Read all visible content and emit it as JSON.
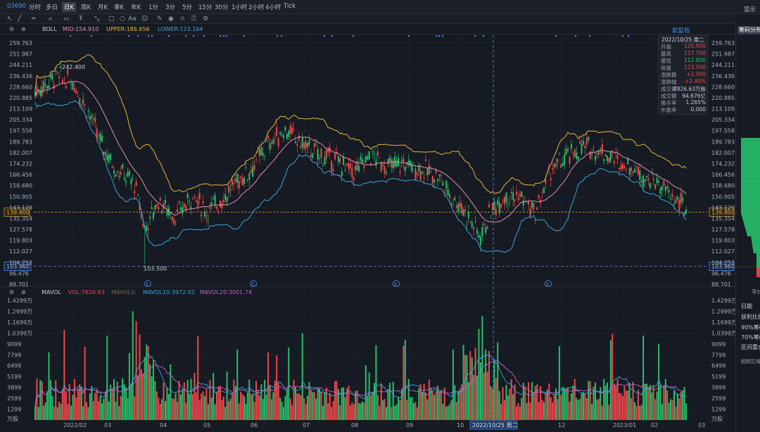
{
  "ticker": "03690",
  "timeframes": [
    "分时",
    "多日",
    "日K",
    "周K",
    "月K",
    "季K",
    "年K",
    "1分",
    "3分",
    "5分",
    "15分",
    "30分",
    "1小时",
    "2小时",
    "4小时",
    "Tick"
  ],
  "active_timeframe": "日K",
  "display_label": "显示",
  "adjust_label": "前复权",
  "chip_tab": "筹码分布",
  "boll": {
    "name": "BOLL",
    "mid": "MID:154.910",
    "upper": "UPPER:186.656",
    "lower": "LOWER:123.164"
  },
  "mavol": {
    "name": "MAVOL",
    "vol": "VOL:7826.63",
    "ma5": "MAVOL5:",
    "ma10": "MAVOL10:3972.02",
    "ma20": "MAVOL20:3001.74"
  },
  "price_axis": [
    "259.763",
    "251.987",
    "244.211",
    "236.436",
    "228.660",
    "220.885",
    "213.109",
    "205.334",
    "197.558",
    "189.783",
    "182.007",
    "174.232",
    "166.456",
    "158.680",
    "150.905",
    "143.129",
    "135.354",
    "127.578",
    "119.803",
    "112.027",
    "104.252",
    "96.476",
    "88.701"
  ],
  "vol_axis": [
    "1.4299万",
    "1.2999万",
    "1.1699万",
    "1.0399万",
    "9099",
    "7799",
    "6499",
    "5199",
    "3899",
    "2599",
    "1299",
    "万股"
  ],
  "date_axis": [
    "2022/02",
    "03",
    "04",
    "05",
    "06",
    "07",
    "08",
    "09",
    "10",
    "2022/10/25 周二",
    "12",
    "2023/01",
    "02",
    "03"
  ],
  "current_price": "139.800",
  "crosshair_price": "103.960",
  "high_marker": "242.400",
  "low_marker": "103.500",
  "event_marker": "E",
  "infobox": {
    "header": "2022/10/25 周二",
    "rows": [
      {
        "label": "开盘",
        "value": "120.900",
        "color": "#f0474b"
      },
      {
        "label": "最高",
        "value": "127.700",
        "color": "#f0474b"
      },
      {
        "label": "最低",
        "value": "112.800",
        "color": "#26c06a"
      },
      {
        "label": "收盘",
        "value": "123.500",
        "color": "#f0474b"
      },
      {
        "label": "涨跌额",
        "value": "+2.900",
        "color": "#f0474b"
      },
      {
        "label": "涨跌幅",
        "value": "+2.40%",
        "color": "#f0474b"
      },
      {
        "label": "成交量",
        "value": "7826.63万股",
        "color": "#c8cdd6"
      },
      {
        "label": "成交额",
        "value": "94.676亿",
        "color": "#c8cdd6"
      },
      {
        "label": "换手率",
        "value": "1.265%",
        "color": "#c8cdd6"
      },
      {
        "label": "市盈率",
        "value": "0.000",
        "color": "#c8cdd6"
      }
    ]
  },
  "right_panel": {
    "items": [
      "平均",
      "日期",
      "获利比例",
      "90%筹码",
      "70%筹码",
      "区间重合",
      "超跌区域"
    ]
  },
  "colors": {
    "up": "#f0474b",
    "down": "#26c06a",
    "upper": "#e5b53c",
    "mid": "#e28fb0",
    "lower": "#3aa6d6",
    "mavol10": "#3aa6d6",
    "mavol20": "#c55fc8",
    "accent": "#4a8ff0"
  }
}
